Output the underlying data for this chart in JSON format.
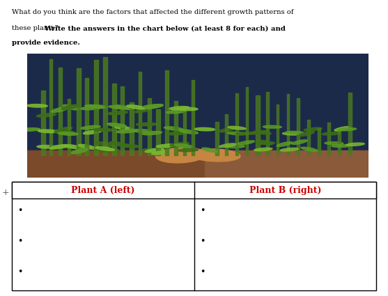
{
  "title_line1": "What do you think are the factors that affected the different growth patterns of",
  "title_line2_normal": "these plants? ",
  "title_line2_bold": "Write the answers in the chart below (at least 8 for each) and",
  "title_line3_bold": "provide evidence.",
  "col1_header": "Plant A (left)",
  "col2_header": "Plant B (right)",
  "header_color": "#cc0000",
  "bullet_count": 3,
  "background_color": "#ffffff",
  "table_border_color": "#000000",
  "bullet_char": "•",
  "image_placeholder": true
}
